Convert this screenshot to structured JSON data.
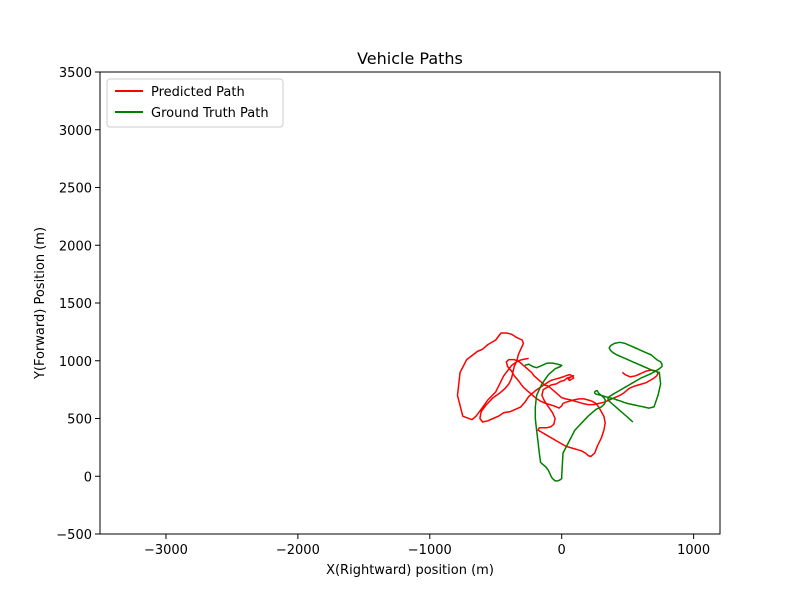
{
  "chart_data": {
    "type": "line",
    "title": "Vehicle Paths",
    "xlabel": "X(Rightward) position (m)",
    "ylabel": "Y(Forward) Position (m)",
    "xlim": [
      -3500,
      1200
    ],
    "ylim": [
      -500,
      3500
    ],
    "xticks": [
      -3000,
      -2000,
      -1000,
      0,
      1000
    ],
    "xtick_labels": [
      "−3000",
      "−2000",
      "−1000",
      "0",
      "1000"
    ],
    "yticks": [
      -500,
      0,
      500,
      1000,
      1500,
      2000,
      2500,
      3000,
      3500
    ],
    "ytick_labels": [
      "−500",
      "0",
      "500",
      "1000",
      "1500",
      "2000",
      "2500",
      "3000",
      "3500"
    ],
    "grid": false,
    "legend_position": "top-left",
    "series": [
      {
        "name": "Predicted Path",
        "color": "#ff0000",
        "x": [
          -250,
          -300,
          -330,
          -380,
          -440,
          -470,
          -500,
          -560,
          -610,
          -650,
          -680,
          -750,
          -790,
          -770,
          -720,
          -640,
          -600,
          -560,
          -500,
          -460,
          -420,
          -380,
          -340,
          -300,
          -290,
          -310,
          -330,
          -340,
          -360,
          -370,
          -380,
          -400,
          -430,
          -470,
          -520,
          -570,
          -610,
          -620,
          -600,
          -560,
          -520,
          -480,
          -440,
          -390,
          -350,
          -310,
          -280,
          -250,
          -200,
          -150,
          -110,
          -80,
          -50,
          -20,
          10,
          30,
          60,
          80,
          90,
          60,
          50,
          70,
          90,
          70,
          40,
          20,
          -10,
          -40,
          -80,
          -110,
          -140,
          -150,
          -130,
          -100,
          -70,
          -50,
          -60,
          -80,
          -110,
          -140,
          -170,
          -180,
          -150,
          -120,
          -90,
          -60,
          -30,
          0,
          30,
          60,
          90,
          120,
          150,
          180,
          200,
          220,
          250,
          270,
          300,
          320,
          330,
          320,
          300,
          280,
          260,
          230,
          200,
          170,
          130,
          90,
          60,
          30,
          10,
          0,
          -10,
          -20,
          -40,
          -60,
          -90,
          -120,
          -160,
          -200,
          -230,
          -260,
          -290,
          -310,
          -330,
          -360,
          -380,
          -410,
          -420,
          -400,
          -360,
          -320,
          -290,
          -260,
          -230,
          -210,
          -190,
          -170,
          -150,
          -130,
          -100,
          -80,
          -60,
          -40,
          -20,
          0,
          30,
          70,
          100,
          130,
          160,
          200,
          240,
          280,
          320,
          360,
          400,
          440,
          470,
          490,
          510,
          530,
          550,
          580,
          610,
          640,
          670,
          700,
          720,
          730,
          720,
          680,
          640,
          600,
          560,
          520,
          480,
          460
        ],
        "y": [
          1020,
          1010,
          1000,
          960,
          870,
          800,
          730,
          660,
          580,
          520,
          490,
          520,
          700,
          900,
          1010,
          1080,
          1100,
          1140,
          1180,
          1240,
          1240,
          1230,
          1200,
          1180,
          1150,
          1100,
          1050,
          1000,
          950,
          900,
          850,
          800,
          760,
          720,
          680,
          620,
          560,
          500,
          470,
          480,
          500,
          520,
          550,
          560,
          580,
          600,
          640,
          690,
          740,
          780,
          810,
          830,
          840,
          850,
          860,
          870,
          880,
          870,
          850,
          830,
          840,
          860,
          870,
          860,
          850,
          830,
          820,
          800,
          790,
          770,
          750,
          700,
          650,
          600,
          550,
          500,
          450,
          430,
          420,
          420,
          420,
          400,
          380,
          360,
          340,
          320,
          300,
          280,
          260,
          250,
          240,
          230,
          220,
          200,
          180,
          170,
          200,
          260,
          330,
          400,
          460,
          520,
          560,
          600,
          630,
          650,
          660,
          670,
          670,
          660,
          650,
          640,
          630,
          610,
          600,
          590,
          600,
          610,
          620,
          630,
          650,
          680,
          710,
          740,
          770,
          800,
          830,
          870,
          910,
          950,
          990,
          1010,
          1010,
          990,
          960,
          930,
          900,
          870,
          850,
          830,
          810,
          790,
          780,
          760,
          740,
          720,
          700,
          680,
          670,
          660,
          650,
          640,
          630,
          620,
          620,
          630,
          640,
          660,
          680,
          700,
          720,
          740,
          760,
          770,
          780,
          790,
          800,
          810,
          830,
          850,
          870,
          890,
          910,
          920,
          910,
          890,
          870,
          860,
          880,
          900
        ]
      },
      {
        "name": "Ground Truth Path",
        "color": "#008000",
        "x": [
          -280,
          -250,
          -220,
          -190,
          -150,
          -110,
          -70,
          -30,
          0,
          -10,
          -50,
          -100,
          -150,
          -190,
          -200,
          -200,
          -190,
          -180,
          -170,
          -160,
          -140,
          -120,
          -100,
          -80,
          -70,
          -60,
          -50,
          -40,
          -30,
          -10,
          0,
          0,
          10,
          100,
          200,
          260,
          300,
          320,
          330,
          330,
          320,
          300,
          280,
          270,
          260,
          250,
          250,
          260,
          300,
          330,
          360,
          400,
          420,
          450,
          470,
          500,
          540,
          580,
          620,
          660,
          700,
          730,
          750,
          740,
          700,
          660,
          620,
          580,
          540,
          500,
          460,
          420,
          390,
          370,
          360,
          370,
          400,
          440,
          480,
          520,
          560,
          600,
          640,
          680,
          700,
          720,
          750,
          760,
          760,
          740,
          710,
          680,
          640,
          600,
          570,
          540,
          510,
          480,
          450,
          420,
          390,
          360,
          350,
          360,
          380,
          400,
          420,
          440,
          460,
          480,
          500,
          520,
          540
        ],
        "y": [
          960,
          970,
          950,
          940,
          960,
          980,
          980,
          970,
          960,
          950,
          930,
          880,
          800,
          700,
          600,
          500,
          400,
          300,
          200,
          120,
          100,
          80,
          50,
          0,
          -20,
          -30,
          -40,
          -40,
          -40,
          -30,
          -20,
          0,
          200,
          400,
          520,
          580,
          600,
          620,
          640,
          660,
          680,
          700,
          720,
          740,
          740,
          730,
          720,
          710,
          700,
          690,
          680,
          670,
          660,
          650,
          640,
          630,
          620,
          610,
          600,
          590,
          600,
          700,
          800,
          900,
          910,
          930,
          950,
          970,
          990,
          1010,
          1030,
          1050,
          1070,
          1090,
          1110,
          1130,
          1150,
          1160,
          1150,
          1130,
          1110,
          1090,
          1070,
          1050,
          1030,
          1010,
          990,
          970,
          950,
          930,
          910,
          890,
          870,
          850,
          830,
          810,
          790,
          770,
          750,
          730,
          710,
          690,
          670,
          650,
          630,
          610,
          590,
          570,
          550,
          530,
          510,
          490,
          470
        ]
      }
    ]
  }
}
